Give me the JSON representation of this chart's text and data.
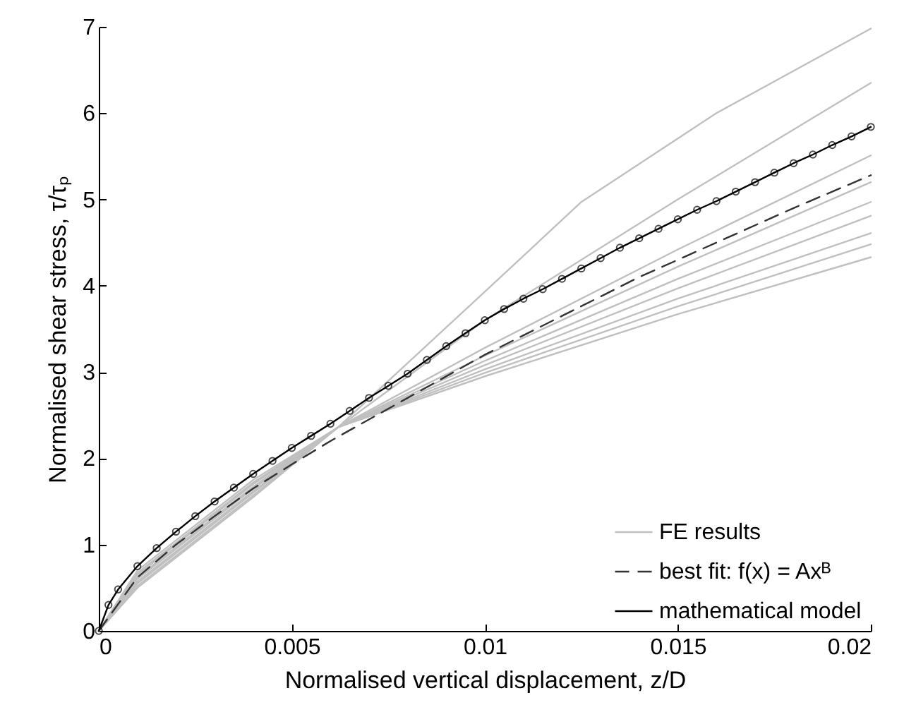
{
  "chart_data": {
    "type": "line",
    "xlabel": "Normalised vertical displacement, z/D",
    "ylabel": "Normalised shear stress, τ/τₚ",
    "xlim": [
      0,
      0.02
    ],
    "ylim": [
      0,
      7
    ],
    "xticks": [
      0,
      0.005,
      0.01,
      0.015,
      0.02
    ],
    "yticks": [
      0,
      1,
      2,
      3,
      4,
      5,
      6,
      7
    ],
    "legend": "bottom right",
    "series": [
      {
        "name": "FE results",
        "color": "#c0c0c0",
        "line_style": "solid",
        "marker": "none",
        "x": [
          0,
          0.001,
          0.002,
          0.004,
          0.0062,
          0.01,
          0.0125,
          0.016,
          0.02
        ],
        "values": [
          0,
          0.5,
          0.85,
          1.55,
          2.36,
          3.93,
          4.97,
          6.0,
          6.98
        ]
      },
      {
        "color": "#c0c0c0",
        "line_style": "solid",
        "marker": "none",
        "x": [
          0,
          0.001,
          0.002,
          0.004,
          0.0062,
          0.01,
          0.015,
          0.02
        ],
        "values": [
          0,
          0.52,
          0.87,
          1.57,
          2.36,
          3.6,
          5.0,
          6.35
        ]
      },
      {
        "color": "#c0c0c0",
        "line_style": "solid",
        "marker": "none",
        "x": [
          0,
          0.001,
          0.002,
          0.004,
          0.0062,
          0.01,
          0.015,
          0.02
        ],
        "values": [
          0,
          0.55,
          0.9,
          1.6,
          2.36,
          3.28,
          4.42,
          5.51
        ]
      },
      {
        "color": "#c0c0c0",
        "line_style": "solid",
        "marker": "none",
        "x": [
          0,
          0.001,
          0.002,
          0.004,
          0.0062,
          0.01,
          0.015,
          0.02
        ],
        "values": [
          0,
          0.57,
          0.92,
          1.62,
          2.36,
          3.19,
          4.22,
          5.2
        ]
      },
      {
        "color": "#c0c0c0",
        "line_style": "solid",
        "marker": "none",
        "x": [
          0,
          0.001,
          0.002,
          0.004,
          0.0062,
          0.01,
          0.015,
          0.02
        ],
        "values": [
          0,
          0.6,
          0.95,
          1.65,
          2.36,
          3.13,
          4.08,
          4.97
        ]
      },
      {
        "color": "#c0c0c0",
        "line_style": "solid",
        "marker": "none",
        "x": [
          0,
          0.001,
          0.002,
          0.004,
          0.0062,
          0.01,
          0.015,
          0.02
        ],
        "values": [
          0,
          0.62,
          0.97,
          1.67,
          2.36,
          3.08,
          3.97,
          4.81
        ]
      },
      {
        "color": "#c0c0c0",
        "line_style": "solid",
        "marker": "none",
        "x": [
          0,
          0.001,
          0.002,
          0.004,
          0.0062,
          0.01,
          0.015,
          0.02
        ],
        "values": [
          0,
          0.65,
          1.0,
          1.7,
          2.36,
          3.03,
          3.85,
          4.61
        ]
      },
      {
        "color": "#c0c0c0",
        "line_style": "solid",
        "marker": "none",
        "x": [
          0,
          0.001,
          0.002,
          0.004,
          0.0062,
          0.01,
          0.015,
          0.02
        ],
        "values": [
          0,
          0.67,
          1.02,
          1.72,
          2.36,
          2.99,
          3.76,
          4.48
        ]
      },
      {
        "color": "#c0c0c0",
        "line_style": "solid",
        "marker": "none",
        "x": [
          0,
          0.001,
          0.002,
          0.004,
          0.0062,
          0.01,
          0.015,
          0.02
        ],
        "values": [
          0,
          0.7,
          1.05,
          1.75,
          2.36,
          2.95,
          3.67,
          4.33
        ]
      },
      {
        "name": "best fit: f(x) = Axᴮ",
        "color": "#333333",
        "line_style": "dashed",
        "marker": "none",
        "x": [
          0,
          0.001,
          0.002,
          0.003,
          0.004,
          0.005,
          0.006,
          0.008,
          0.01,
          0.012,
          0.014,
          0.016,
          0.018,
          0.02
        ],
        "values": [
          0,
          0.62,
          1.0,
          1.33,
          1.65,
          1.93,
          2.2,
          2.7,
          3.2,
          3.65,
          4.1,
          4.5,
          4.9,
          5.28
        ]
      },
      {
        "name": "mathematical model",
        "color": "#000000",
        "line_style": "solid",
        "marker": "circle",
        "x": [
          0,
          0.00025,
          0.0005,
          0.001,
          0.0015,
          0.002,
          0.0025,
          0.003,
          0.0035,
          0.004,
          0.0045,
          0.005,
          0.0055,
          0.006,
          0.0065,
          0.007,
          0.0075,
          0.008,
          0.0085,
          0.009,
          0.0095,
          0.01,
          0.0105,
          0.011,
          0.0115,
          0.012,
          0.0125,
          0.013,
          0.0135,
          0.014,
          0.0145,
          0.015,
          0.0155,
          0.016,
          0.0165,
          0.017,
          0.0175,
          0.018,
          0.0185,
          0.019,
          0.0195,
          0.02
        ],
        "values": [
          0,
          0.3,
          0.48,
          0.75,
          0.96,
          1.15,
          1.33,
          1.5,
          1.66,
          1.82,
          1.97,
          2.12,
          2.26,
          2.4,
          2.55,
          2.7,
          2.84,
          2.98,
          3.14,
          3.3,
          3.45,
          3.6,
          3.73,
          3.85,
          3.96,
          4.08,
          4.2,
          4.32,
          4.44,
          4.55,
          4.66,
          4.77,
          4.88,
          4.98,
          5.09,
          5.2,
          5.31,
          5.42,
          5.52,
          5.63,
          5.73,
          5.84
        ]
      }
    ]
  }
}
